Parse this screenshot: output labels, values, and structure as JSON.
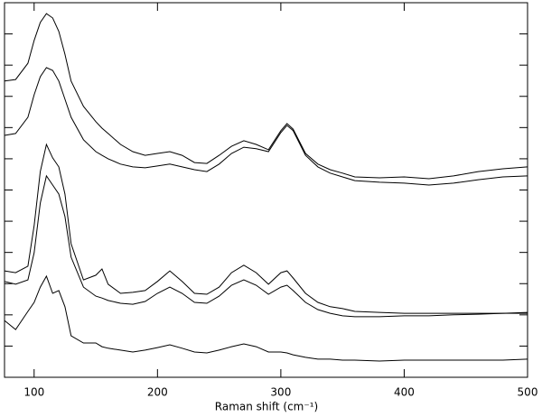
{
  "chart_data": {
    "type": "line",
    "x_label": "Raman shift (cm⁻¹)",
    "x": [
      76,
      85,
      95,
      100,
      105,
      110,
      115,
      120,
      125,
      130,
      140,
      150,
      155,
      160,
      170,
      180,
      190,
      200,
      210,
      220,
      230,
      240,
      250,
      260,
      270,
      280,
      290,
      300,
      305,
      310,
      320,
      330,
      340,
      350,
      360,
      380,
      400,
      420,
      440,
      460,
      480,
      500
    ],
    "series": [
      {
        "color": "#000000",
        "values": [
          94.9,
          95.4,
          100.6,
          107.9,
          113.7,
          116.5,
          115.1,
          110.8,
          103.5,
          94.9,
          86.8,
          81.9,
          79.8,
          78.1,
          74.6,
          72.3,
          71.1,
          71.7,
          72.3,
          71.1,
          68.8,
          68.5,
          71.1,
          74.0,
          75.8,
          74.6,
          72.9,
          79.0,
          81.3,
          79.5,
          71.7,
          68.3,
          66.5,
          65.4,
          64.2,
          63.9,
          64.2,
          63.6,
          64.5,
          65.9,
          66.8,
          67.4
        ]
      },
      {
        "color": "#000000",
        "values": [
          77.5,
          78.1,
          83.3,
          90.5,
          96.3,
          99.2,
          98.3,
          94.9,
          89.1,
          83.3,
          76.1,
          72.3,
          71.1,
          70.0,
          68.3,
          67.4,
          67.1,
          67.7,
          68.3,
          67.4,
          66.5,
          65.9,
          68.3,
          71.7,
          73.7,
          73.2,
          72.3,
          78.4,
          80.7,
          79.0,
          71.1,
          67.4,
          65.4,
          64.2,
          63.0,
          62.5,
          62.2,
          61.6,
          62.2,
          63.3,
          64.2,
          64.5
        ]
      },
      {
        "color": "#000000",
        "values": [
          34.1,
          33.5,
          35.6,
          48.6,
          65.9,
          74.6,
          70.3,
          67.4,
          58.7,
          42.8,
          31.2,
          32.7,
          34.7,
          29.8,
          26.9,
          27.2,
          27.8,
          30.7,
          34.1,
          30.7,
          26.9,
          26.6,
          28.9,
          33.5,
          35.9,
          33.5,
          29.8,
          33.5,
          34.1,
          31.8,
          26.9,
          24.0,
          22.6,
          22.0,
          21.1,
          20.8,
          20.5,
          20.5,
          20.5,
          20.5,
          20.5,
          20.8
        ]
      },
      {
        "color": "#000000",
        "values": [
          30.7,
          29.8,
          31.2,
          39.9,
          55.8,
          64.5,
          61.6,
          58.7,
          51.5,
          38.5,
          28.9,
          26.0,
          25.4,
          24.6,
          23.7,
          23.4,
          24.3,
          26.9,
          28.9,
          26.9,
          24.0,
          23.7,
          26.0,
          29.5,
          31.2,
          29.5,
          26.6,
          28.9,
          29.5,
          27.8,
          24.0,
          21.7,
          20.5,
          19.7,
          19.4,
          19.4,
          19.7,
          19.7,
          20.0,
          20.2,
          20.5,
          20.5
        ]
      },
      {
        "color": "#000000",
        "values": [
          18.2,
          15.3,
          21.1,
          24.0,
          28.9,
          32.4,
          26.9,
          27.8,
          22.6,
          13.3,
          11.0,
          11.0,
          9.8,
          9.3,
          8.7,
          8.1,
          8.7,
          9.5,
          10.4,
          9.3,
          8.1,
          7.8,
          8.7,
          9.8,
          10.7,
          9.8,
          8.1,
          8.1,
          7.8,
          7.2,
          6.4,
          5.8,
          5.8,
          5.5,
          5.5,
          5.2,
          5.5,
          5.5,
          5.5,
          5.5,
          5.5,
          5.8
        ]
      }
    ],
    "xlim": [
      76,
      500
    ],
    "xticks": [
      100,
      200,
      300,
      400,
      500
    ],
    "ylim": [
      0,
      120
    ],
    "yticks": [
      0,
      10,
      20,
      30,
      40,
      50,
      60,
      70,
      80,
      90,
      100,
      110,
      120
    ],
    "grid": false
  }
}
